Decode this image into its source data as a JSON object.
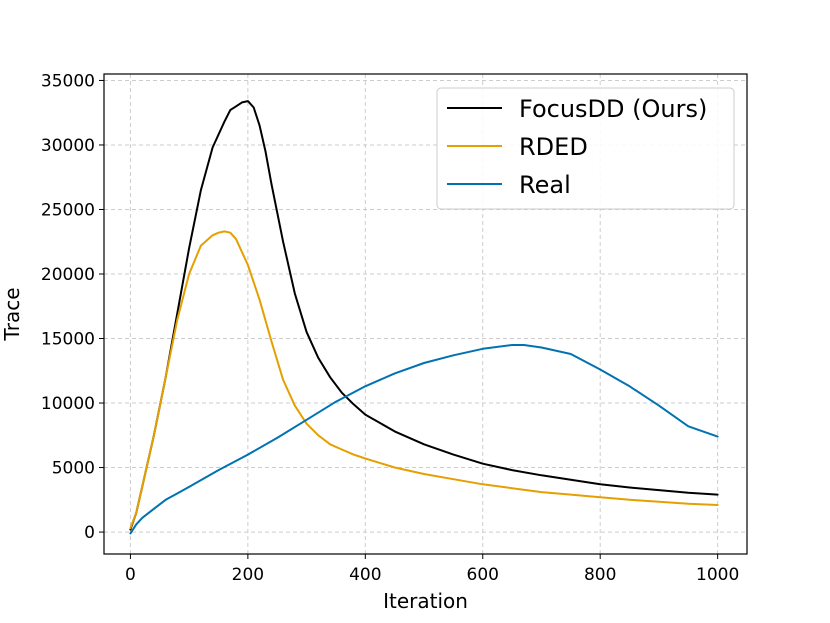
{
  "chart_data": {
    "type": "line",
    "xlabel": "Iteration",
    "ylabel": "Trace",
    "xlim": [
      -45,
      1050
    ],
    "ylim": [
      -1700,
      35500
    ],
    "xticks": [
      0,
      200,
      400,
      600,
      800,
      1000
    ],
    "yticks": [
      0,
      5000,
      10000,
      15000,
      20000,
      25000,
      30000,
      35000
    ],
    "grid": true,
    "legend_position": "top-right",
    "series": [
      {
        "name": "FocusDD (Ours)",
        "color": "#000000",
        "x": [
          0,
          10,
          20,
          40,
          60,
          80,
          100,
          120,
          140,
          160,
          170,
          180,
          190,
          200,
          210,
          220,
          230,
          240,
          260,
          280,
          300,
          320,
          340,
          360,
          380,
          400,
          450,
          500,
          550,
          600,
          650,
          700,
          750,
          800,
          850,
          900,
          950,
          1000
        ],
        "y": [
          200,
          1500,
          3500,
          7500,
          12000,
          17000,
          22000,
          26500,
          29800,
          31800,
          32700,
          33000,
          33300,
          33400,
          32900,
          31500,
          29500,
          27000,
          22500,
          18500,
          15500,
          13500,
          12000,
          10800,
          9900,
          9100,
          7800,
          6800,
          6000,
          5300,
          4800,
          4400,
          4050,
          3700,
          3450,
          3250,
          3050,
          2900
        ]
      },
      {
        "name": "RDED",
        "color": "#E69F00",
        "x": [
          0,
          10,
          20,
          40,
          60,
          80,
          100,
          120,
          140,
          150,
          160,
          170,
          180,
          200,
          220,
          240,
          260,
          280,
          300,
          320,
          340,
          360,
          380,
          400,
          450,
          500,
          550,
          600,
          650,
          700,
          750,
          800,
          850,
          900,
          950,
          1000
        ],
        "y": [
          300,
          1500,
          3500,
          7500,
          12000,
          16500,
          20000,
          22200,
          23000,
          23200,
          23300,
          23200,
          22700,
          20700,
          18000,
          14800,
          11800,
          9800,
          8400,
          7500,
          6800,
          6400,
          6000,
          5700,
          5000,
          4500,
          4100,
          3700,
          3400,
          3100,
          2900,
          2700,
          2500,
          2350,
          2200,
          2100
        ]
      },
      {
        "name": "Real",
        "color": "#0072B2",
        "x": [
          0,
          10,
          20,
          40,
          60,
          80,
          100,
          150,
          200,
          250,
          300,
          350,
          400,
          450,
          500,
          550,
          600,
          650,
          670,
          700,
          750,
          800,
          850,
          900,
          950,
          1000
        ],
        "y": [
          -100,
          600,
          1100,
          1800,
          2500,
          3000,
          3500,
          4800,
          6000,
          7300,
          8700,
          10100,
          11300,
          12300,
          13100,
          13700,
          14200,
          14500,
          14500,
          14300,
          13800,
          12600,
          11300,
          9800,
          8200,
          7400
        ]
      }
    ]
  }
}
